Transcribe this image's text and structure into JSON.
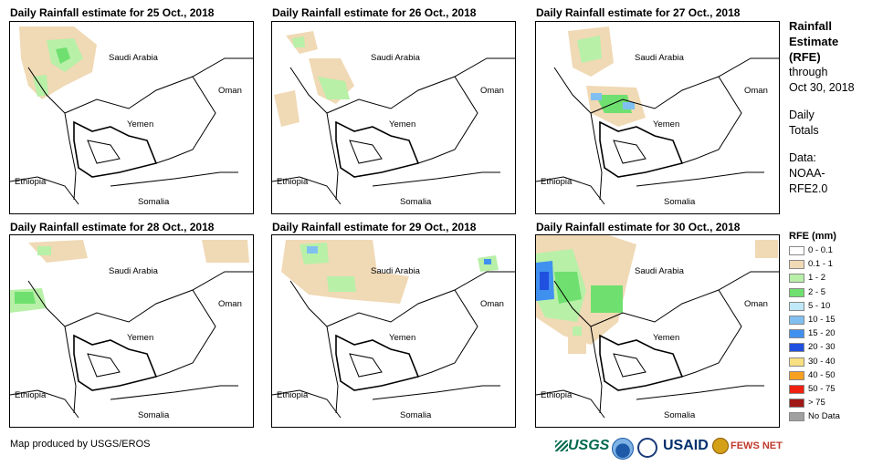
{
  "panels": [
    {
      "title": "Daily Rainfall estimate for 25 Oct., 2018"
    },
    {
      "title": "Daily Rainfall estimate for 26 Oct., 2018"
    },
    {
      "title": "Daily Rainfall estimate for 27 Oct., 2018"
    },
    {
      "title": "Daily Rainfall estimate for 28 Oct., 2018"
    },
    {
      "title": "Daily Rainfall estimate for 29 Oct., 2018"
    },
    {
      "title": "Daily Rainfall estimate for 30 Oct., 2018"
    }
  ],
  "places": {
    "saudi": "Saudi Arabia",
    "oman": "Oman",
    "yemen": "Yemen",
    "ethiopia": "Ethiopia",
    "somalia": "Somalia"
  },
  "side": {
    "title_line1": "Rainfall",
    "title_line2": "Estimate",
    "title_line3": "(RFE)",
    "through": "through",
    "date": "Oct 30, 2018",
    "daily1": "Daily",
    "daily2": "Totals",
    "data1": "Data:",
    "data2": "NOAA-",
    "data3": "RFE2.0"
  },
  "legend": {
    "title": "RFE (mm)",
    "items": [
      {
        "label": "0 - 0.1",
        "color": "#ffffff"
      },
      {
        "label": "0.1 - 1",
        "color": "#f0d9b5"
      },
      {
        "label": "1 - 2",
        "color": "#b8f0a8"
      },
      {
        "label": "2 - 5",
        "color": "#6fe06f"
      },
      {
        "label": "5 - 10",
        "color": "#bfe8f8"
      },
      {
        "label": "10 - 15",
        "color": "#80c0f0"
      },
      {
        "label": "15 - 20",
        "color": "#4090f0"
      },
      {
        "label": "20 - 30",
        "color": "#2050e0"
      },
      {
        "label": "30 - 40",
        "color": "#f8e080"
      },
      {
        "label": "40 - 50",
        "color": "#f8a020"
      },
      {
        "label": "50 - 75",
        "color": "#f02010"
      },
      {
        "label": "> 75",
        "color": "#a01818"
      },
      {
        "label": "No Data",
        "color": "#a0a0a0"
      }
    ]
  },
  "credit": "Map produced by USGS/EROS",
  "logos": {
    "usgs": "USGS",
    "usaid": "USAID",
    "fews": "FEWS NET"
  }
}
